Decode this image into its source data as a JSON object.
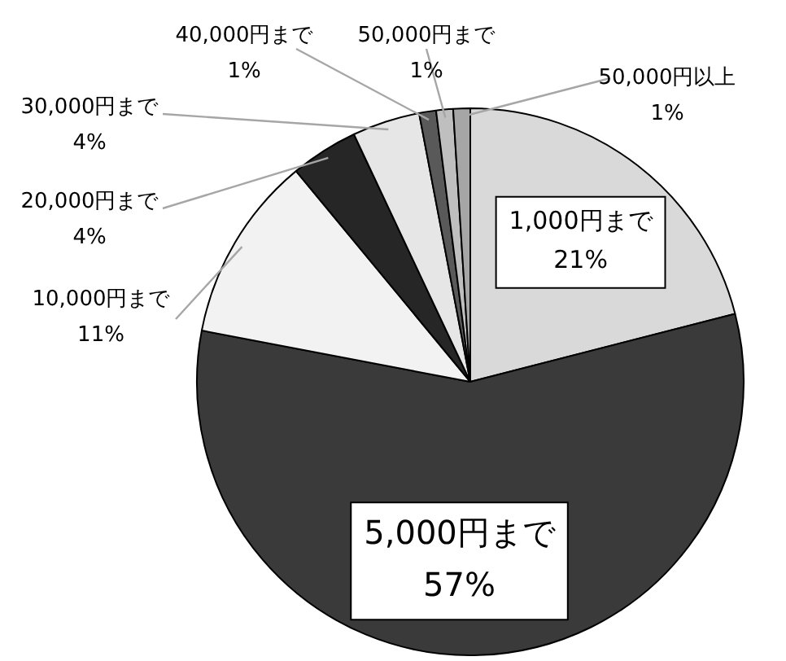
{
  "chart_data": {
    "type": "pie",
    "categories": [
      "1,000円まで",
      "5,000円まで",
      "10,000円まで",
      "20,000円まで",
      "30,000円まで",
      "40,000円まで",
      "50,000円まで",
      "50,000円以上"
    ],
    "values": [
      21,
      57,
      11,
      4,
      4,
      1,
      1,
      1
    ],
    "value_labels": [
      "21%",
      "57%",
      "11%",
      "4%",
      "4%",
      "1%",
      "1%",
      "1%"
    ],
    "colors": [
      "#d9d9d9",
      "#3a3a3a",
      "#f2f2f2",
      "#262626",
      "#e6e6e6",
      "#595959",
      "#bfbfbf",
      "#a6a6a6"
    ],
    "legend": false
  }
}
